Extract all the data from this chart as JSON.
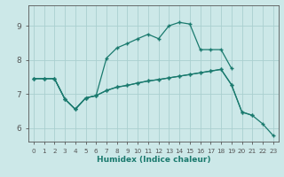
{
  "xlabel": "Humidex (Indice chaleur)",
  "bg_color": "#cce8e8",
  "grid_color": "#aacfcf",
  "line_color": "#1a7a6e",
  "axis_color": "#555555",
  "xlim": [
    -0.5,
    23.5
  ],
  "ylim": [
    5.6,
    9.6
  ],
  "yticks": [
    6,
    7,
    8,
    9
  ],
  "xticks": [
    0,
    1,
    2,
    3,
    4,
    5,
    6,
    7,
    8,
    9,
    10,
    11,
    12,
    13,
    14,
    15,
    16,
    17,
    18,
    19,
    20,
    21,
    22,
    23
  ],
  "line_top_x": [
    0,
    1,
    2,
    3,
    4,
    5,
    6,
    7,
    8,
    9,
    10,
    11,
    12,
    13,
    14,
    15,
    16,
    17,
    18,
    19
  ],
  "line_top_y": [
    7.45,
    7.45,
    7.45,
    6.85,
    6.55,
    6.88,
    6.95,
    8.05,
    8.35,
    8.48,
    8.62,
    8.75,
    8.62,
    9.0,
    9.1,
    9.05,
    8.3,
    8.3,
    8.3,
    7.75
  ],
  "line_mid_x": [
    0,
    1,
    2,
    3,
    4,
    5,
    6,
    7,
    8,
    9,
    10,
    11,
    12,
    13,
    14,
    15,
    16,
    17,
    18,
    19,
    20,
    21
  ],
  "line_mid_y": [
    7.45,
    7.45,
    7.45,
    6.85,
    6.55,
    6.88,
    6.95,
    7.1,
    7.2,
    7.25,
    7.32,
    7.38,
    7.42,
    7.47,
    7.52,
    7.57,
    7.62,
    7.67,
    7.72,
    7.27,
    6.47,
    6.37
  ],
  "line_bot_x": [
    0,
    1,
    2,
    3,
    4,
    5,
    6,
    7,
    8,
    9,
    10,
    11,
    12,
    13,
    14,
    15,
    16,
    17,
    18,
    19,
    20,
    21,
    22,
    23
  ],
  "line_bot_y": [
    7.45,
    7.45,
    7.45,
    6.85,
    6.55,
    6.88,
    6.95,
    7.1,
    7.2,
    7.25,
    7.32,
    7.38,
    7.42,
    7.47,
    7.52,
    7.57,
    7.62,
    7.67,
    7.72,
    7.27,
    6.47,
    6.37,
    6.12,
    5.78
  ]
}
